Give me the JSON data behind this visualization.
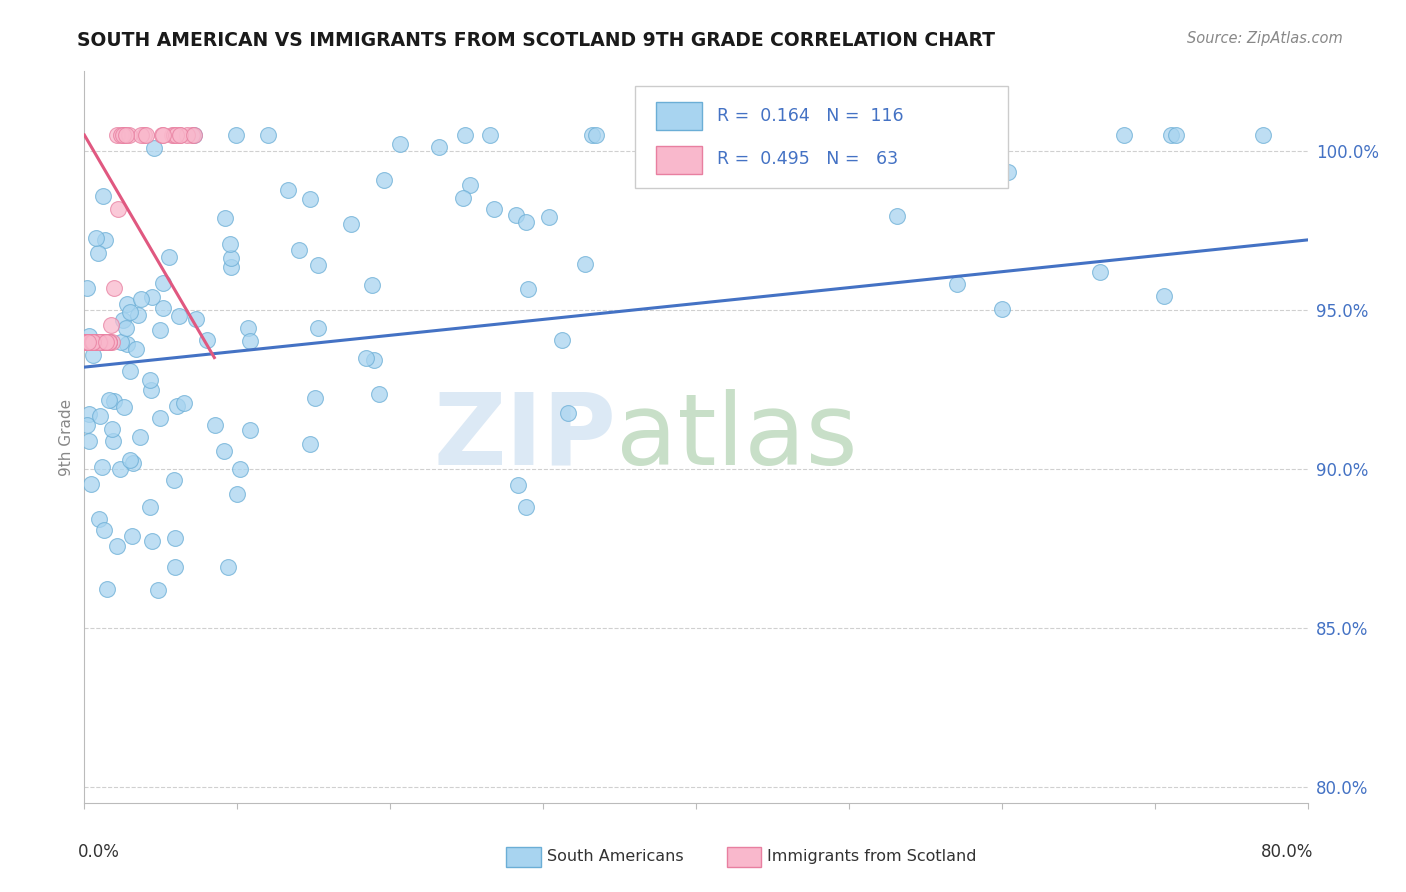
{
  "title": "SOUTH AMERICAN VS IMMIGRANTS FROM SCOTLAND 9TH GRADE CORRELATION CHART",
  "source": "Source: ZipAtlas.com",
  "ylabel": "9th Grade",
  "ytick_values": [
    0.8,
    0.85,
    0.9,
    0.95,
    1.0
  ],
  "xlim": [
    0.0,
    0.8
  ],
  "ylim": [
    0.795,
    1.025
  ],
  "blue_color": "#a8d4f0",
  "blue_edge_color": "#6baed6",
  "pink_color": "#f9b8cc",
  "pink_edge_color": "#e87fa0",
  "blue_line_color": "#4472c4",
  "pink_line_color": "#e05880",
  "watermark_zip_color": "#dce9f5",
  "watermark_atlas_color": "#c8dfc8",
  "legend_blue_text": "R =  0.164   N =  116",
  "legend_pink_text": "R =  0.495   N =   63",
  "legend_text_color": "#4472c4",
  "title_color": "#1a1a1a",
  "source_color": "#888888",
  "ylabel_color": "#888888",
  "grid_color": "#d0d0d0",
  "tick_label_color": "#4472c4",
  "bottom_label_color": "#333333",
  "blue_trend_x0": 0.0,
  "blue_trend_y0": 0.932,
  "blue_trend_x1": 0.8,
  "blue_trend_y1": 0.972,
  "pink_trend_x0": 0.0,
  "pink_trend_y0": 1.005,
  "pink_trend_x1": 0.085,
  "pink_trend_y1": 0.935
}
